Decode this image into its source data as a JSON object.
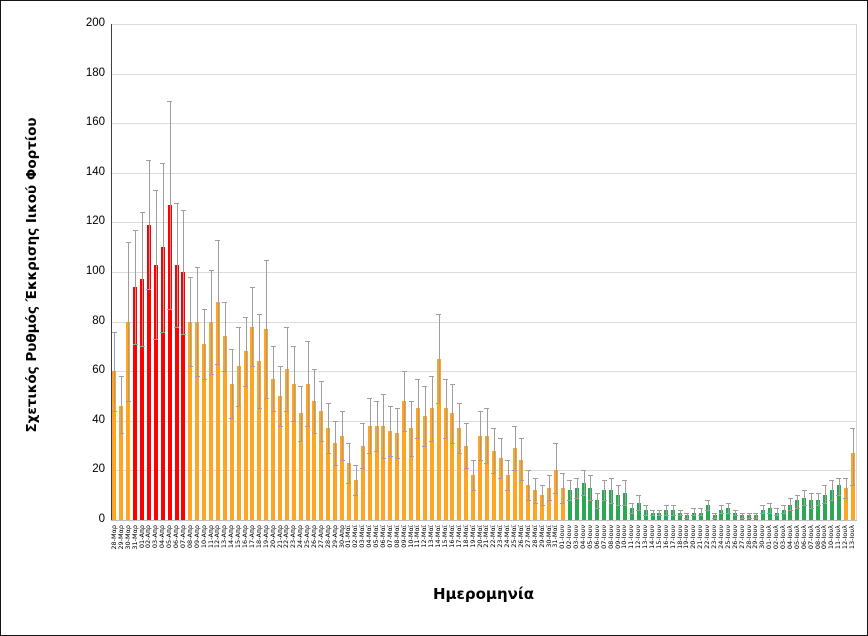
{
  "figure": {
    "title": "",
    "y_axis_title": "Σχετικός Ρυθμός Έκκρισης Ιικού Φορτίου",
    "x_axis_title": "Ημερομηνία"
  },
  "chart_data": {
    "type": "bar",
    "title": "",
    "xlabel": "Ημερομηνία",
    "ylabel": "Σχετικός Ρυθμός Έκκρισης Ιικού Φορτίου",
    "ylim": [
      0,
      200
    ],
    "yticks": [
      0,
      20,
      40,
      60,
      80,
      100,
      120,
      140,
      160,
      180,
      200
    ],
    "grid": true,
    "legend": "none",
    "error_bars": true,
    "colors": {
      "red": "#fe0000",
      "orange": "#ffa423",
      "green": "#2aa952",
      "error": "#9e9e9e",
      "gridline": "#dcdcdc"
    },
    "bars": [
      {
        "date": "28-Μαρ",
        "value": 60,
        "lo": 44,
        "hi": 76,
        "color": "orange"
      },
      {
        "date": "29-Μαρ",
        "value": 46,
        "lo": 35,
        "hi": 58,
        "color": "orange"
      },
      {
        "date": "30-Μαρ",
        "value": 80,
        "lo": 48,
        "hi": 112,
        "color": "orange"
      },
      {
        "date": "31-Μαρ",
        "value": 94,
        "lo": 71,
        "hi": 117,
        "color": "red"
      },
      {
        "date": "01-Απρ",
        "value": 97,
        "lo": 70,
        "hi": 124,
        "color": "red"
      },
      {
        "date": "02-Απρ",
        "value": 119,
        "lo": 93,
        "hi": 145,
        "color": "red"
      },
      {
        "date": "03-Απρ",
        "value": 103,
        "lo": 73,
        "hi": 133,
        "color": "red"
      },
      {
        "date": "04-Απρ",
        "value": 110,
        "lo": 76,
        "hi": 144,
        "color": "red"
      },
      {
        "date": "05-Απρ",
        "value": 127,
        "lo": 85,
        "hi": 169,
        "color": "red"
      },
      {
        "date": "06-Απρ",
        "value": 103,
        "lo": 78,
        "hi": 128,
        "color": "red"
      },
      {
        "date": "07-Απρ",
        "value": 100,
        "lo": 75,
        "hi": 125,
        "color": "red"
      },
      {
        "date": "08-Απρ",
        "value": 80,
        "lo": 62,
        "hi": 98,
        "color": "orange"
      },
      {
        "date": "09-Απρ",
        "value": 80,
        "lo": 58,
        "hi": 102,
        "color": "orange"
      },
      {
        "date": "10-Απρ",
        "value": 71,
        "lo": 57,
        "hi": 85,
        "color": "orange"
      },
      {
        "date": "11-Απρ",
        "value": 80,
        "lo": 59,
        "hi": 101,
        "color": "orange"
      },
      {
        "date": "12-Απρ",
        "value": 88,
        "lo": 63,
        "hi": 113,
        "color": "orange"
      },
      {
        "date": "13-Απρ",
        "value": 74,
        "lo": 60,
        "hi": 88,
        "color": "orange"
      },
      {
        "date": "14-Απρ",
        "value": 55,
        "lo": 41,
        "hi": 69,
        "color": "orange"
      },
      {
        "date": "15-Απρ",
        "value": 62,
        "lo": 46,
        "hi": 78,
        "color": "orange"
      },
      {
        "date": "16-Απρ",
        "value": 68,
        "lo": 54,
        "hi": 82,
        "color": "orange"
      },
      {
        "date": "17-Απρ",
        "value": 78,
        "lo": 62,
        "hi": 94,
        "color": "orange"
      },
      {
        "date": "18-Απρ",
        "value": 64,
        "lo": 45,
        "hi": 83,
        "color": "orange"
      },
      {
        "date": "19-Απρ",
        "value": 77,
        "lo": 49,
        "hi": 105,
        "color": "orange"
      },
      {
        "date": "20-Απρ",
        "value": 57,
        "lo": 44,
        "hi": 70,
        "color": "orange"
      },
      {
        "date": "21-Απρ",
        "value": 50,
        "lo": 38,
        "hi": 62,
        "color": "orange"
      },
      {
        "date": "22-Απρ",
        "value": 61,
        "lo": 44,
        "hi": 78,
        "color": "orange"
      },
      {
        "date": "23-Απρ",
        "value": 55,
        "lo": 40,
        "hi": 70,
        "color": "orange"
      },
      {
        "date": "24-Απρ",
        "value": 43,
        "lo": 32,
        "hi": 54,
        "color": "orange"
      },
      {
        "date": "25-Απρ",
        "value": 55,
        "lo": 38,
        "hi": 72,
        "color": "orange"
      },
      {
        "date": "26-Απρ",
        "value": 48,
        "lo": 35,
        "hi": 61,
        "color": "orange"
      },
      {
        "date": "27-Απρ",
        "value": 44,
        "lo": 32,
        "hi": 56,
        "color": "orange"
      },
      {
        "date": "28-Απρ",
        "value": 37,
        "lo": 27,
        "hi": 47,
        "color": "orange"
      },
      {
        "date": "29-Απρ",
        "value": 31,
        "lo": 22,
        "hi": 40,
        "color": "orange"
      },
      {
        "date": "30-Απρ",
        "value": 34,
        "lo": 24,
        "hi": 44,
        "color": "orange"
      },
      {
        "date": "01-Μαϊ",
        "value": 23,
        "lo": 15,
        "hi": 31,
        "color": "orange"
      },
      {
        "date": "02-Μαϊ",
        "value": 16,
        "lo": 10,
        "hi": 22,
        "color": "orange"
      },
      {
        "date": "03-Μαϊ",
        "value": 30,
        "lo": 21,
        "hi": 39,
        "color": "orange"
      },
      {
        "date": "04-Μαϊ",
        "value": 38,
        "lo": 27,
        "hi": 49,
        "color": "orange"
      },
      {
        "date": "05-Μαϊ",
        "value": 38,
        "lo": 28,
        "hi": 48,
        "color": "orange"
      },
      {
        "date": "06-Μαϊ",
        "value": 38,
        "lo": 25,
        "hi": 51,
        "color": "orange"
      },
      {
        "date": "07-Μαϊ",
        "value": 36,
        "lo": 26,
        "hi": 46,
        "color": "orange"
      },
      {
        "date": "08-Μαϊ",
        "value": 35,
        "lo": 25,
        "hi": 45,
        "color": "orange"
      },
      {
        "date": "09-Μαϊ",
        "value": 48,
        "lo": 36,
        "hi": 60,
        "color": "orange"
      },
      {
        "date": "10-Μαϊ",
        "value": 37,
        "lo": 26,
        "hi": 48,
        "color": "orange"
      },
      {
        "date": "11-Μαϊ",
        "value": 45,
        "lo": 33,
        "hi": 57,
        "color": "orange"
      },
      {
        "date": "12-Μαϊ",
        "value": 42,
        "lo": 30,
        "hi": 54,
        "color": "orange"
      },
      {
        "date": "13-Μαϊ",
        "value": 45,
        "lo": 32,
        "hi": 58,
        "color": "orange"
      },
      {
        "date": "14-Μαϊ",
        "value": 65,
        "lo": 47,
        "hi": 83,
        "color": "orange"
      },
      {
        "date": "15-Μαϊ",
        "value": 45,
        "lo": 33,
        "hi": 57,
        "color": "orange"
      },
      {
        "date": "16-Μαϊ",
        "value": 43,
        "lo": 31,
        "hi": 55,
        "color": "orange"
      },
      {
        "date": "17-Μαϊ",
        "value": 37,
        "lo": 27,
        "hi": 47,
        "color": "orange"
      },
      {
        "date": "18-Μαϊ",
        "value": 30,
        "lo": 21,
        "hi": 39,
        "color": "orange"
      },
      {
        "date": "19-Μαϊ",
        "value": 18,
        "lo": 12,
        "hi": 24,
        "color": "orange"
      },
      {
        "date": "20-Μαϊ",
        "value": 34,
        "lo": 24,
        "hi": 44,
        "color": "orange"
      },
      {
        "date": "21-Μαϊ",
        "value": 34,
        "lo": 23,
        "hi": 45,
        "color": "orange"
      },
      {
        "date": "22-Μαϊ",
        "value": 28,
        "lo": 19,
        "hi": 37,
        "color": "orange"
      },
      {
        "date": "23-Μαϊ",
        "value": 25,
        "lo": 17,
        "hi": 33,
        "color": "orange"
      },
      {
        "date": "24-Μαϊ",
        "value": 18,
        "lo": 12,
        "hi": 24,
        "color": "orange"
      },
      {
        "date": "25-Μαϊ",
        "value": 29,
        "lo": 20,
        "hi": 38,
        "color": "orange"
      },
      {
        "date": "26-Μαϊ",
        "value": 24,
        "lo": 16,
        "hi": 33,
        "color": "orange"
      },
      {
        "date": "27-Μαϊ",
        "value": 14,
        "lo": 8,
        "hi": 20,
        "color": "orange"
      },
      {
        "date": "28-Μαϊ",
        "value": 12,
        "lo": 7,
        "hi": 17,
        "color": "orange"
      },
      {
        "date": "29-Μαϊ",
        "value": 10,
        "lo": 6,
        "hi": 14,
        "color": "orange"
      },
      {
        "date": "30-Μαϊ",
        "value": 13,
        "lo": 8,
        "hi": 18,
        "color": "orange"
      },
      {
        "date": "31-Μαϊ",
        "value": 20,
        "lo": 11,
        "hi": 31,
        "color": "orange"
      },
      {
        "date": "01-Ιουν",
        "value": 13,
        "lo": 7,
        "hi": 19,
        "color": "orange"
      },
      {
        "date": "02-Ιουν",
        "value": 12,
        "lo": 8,
        "hi": 16,
        "color": "green"
      },
      {
        "date": "03-Ιουν",
        "value": 13,
        "lo": 9,
        "hi": 17,
        "color": "green"
      },
      {
        "date": "04-Ιουν",
        "value": 15,
        "lo": 10,
        "hi": 20,
        "color": "green"
      },
      {
        "date": "05-Ιουν",
        "value": 13,
        "lo": 8,
        "hi": 18,
        "color": "green"
      },
      {
        "date": "06-Ιουν",
        "value": 8,
        "lo": 5,
        "hi": 11,
        "color": "green"
      },
      {
        "date": "07-Ιουν",
        "value": 12,
        "lo": 8,
        "hi": 16,
        "color": "green"
      },
      {
        "date": "08-Ιουν",
        "value": 12,
        "lo": 7,
        "hi": 17,
        "color": "green"
      },
      {
        "date": "09-Ιουν",
        "value": 10,
        "lo": 6,
        "hi": 14,
        "color": "green"
      },
      {
        "date": "10-Ιουν",
        "value": 11,
        "lo": 6,
        "hi": 16,
        "color": "green"
      },
      {
        "date": "11-Ιουν",
        "value": 5,
        "lo": 3,
        "hi": 7,
        "color": "green"
      },
      {
        "date": "12-Ιουν",
        "value": 7,
        "lo": 4,
        "hi": 10,
        "color": "green"
      },
      {
        "date": "13-Ιουν",
        "value": 4,
        "lo": 2,
        "hi": 6,
        "color": "green"
      },
      {
        "date": "14-Ιουν",
        "value": 3,
        "lo": 2,
        "hi": 4,
        "color": "green"
      },
      {
        "date": "15-Ιουν",
        "value": 3,
        "lo": 2,
        "hi": 4,
        "color": "green"
      },
      {
        "date": "16-Ιουν",
        "value": 4,
        "lo": 2,
        "hi": 6,
        "color": "green"
      },
      {
        "date": "17-Ιουν",
        "value": 4,
        "lo": 2,
        "hi": 6,
        "color": "green"
      },
      {
        "date": "18-Ιουν",
        "value": 3,
        "lo": 2,
        "hi": 4,
        "color": "green"
      },
      {
        "date": "19-Ιουν",
        "value": 2,
        "lo": 1,
        "hi": 3,
        "color": "green"
      },
      {
        "date": "20-Ιουν",
        "value": 3,
        "lo": 2,
        "hi": 5,
        "color": "green"
      },
      {
        "date": "21-Ιουν",
        "value": 3,
        "lo": 2,
        "hi": 5,
        "color": "green"
      },
      {
        "date": "22-Ιουν",
        "value": 6,
        "lo": 4,
        "hi": 8,
        "color": "green"
      },
      {
        "date": "23-Ιουν",
        "value": 2,
        "lo": 1,
        "hi": 3,
        "color": "green"
      },
      {
        "date": "24-Ιουν",
        "value": 4,
        "lo": 3,
        "hi": 6,
        "color": "green"
      },
      {
        "date": "25-Ιουν",
        "value": 5,
        "lo": 3,
        "hi": 7,
        "color": "green"
      },
      {
        "date": "26-Ιουν",
        "value": 3,
        "lo": 2,
        "hi": 4,
        "color": "green"
      },
      {
        "date": "27-Ιουν",
        "value": 2,
        "lo": 1,
        "hi": 3,
        "color": "green"
      },
      {
        "date": "28-Ιουν",
        "value": 2,
        "lo": 1,
        "hi": 3,
        "color": "green"
      },
      {
        "date": "29-Ιουν",
        "value": 2,
        "lo": 1,
        "hi": 3,
        "color": "green"
      },
      {
        "date": "30-Ιουν",
        "value": 4,
        "lo": 3,
        "hi": 6,
        "color": "green"
      },
      {
        "date": "01-Ιουλ",
        "value": 5,
        "lo": 3,
        "hi": 7,
        "color": "green"
      },
      {
        "date": "02-Ιουλ",
        "value": 3,
        "lo": 2,
        "hi": 5,
        "color": "green"
      },
      {
        "date": "03-Ιουλ",
        "value": 4,
        "lo": 3,
        "hi": 6,
        "color": "green"
      },
      {
        "date": "04-Ιουλ",
        "value": 6,
        "lo": 4,
        "hi": 9,
        "color": "green"
      },
      {
        "date": "05-Ιουλ",
        "value": 8,
        "lo": 5,
        "hi": 10,
        "color": "green"
      },
      {
        "date": "06-Ιουλ",
        "value": 9,
        "lo": 6,
        "hi": 12,
        "color": "green"
      },
      {
        "date": "07-Ιουλ",
        "value": 8,
        "lo": 5,
        "hi": 11,
        "color": "green"
      },
      {
        "date": "08-Ιουλ",
        "value": 8,
        "lo": 6,
        "hi": 11,
        "color": "green"
      },
      {
        "date": "09-Ιουλ",
        "value": 10,
        "lo": 7,
        "hi": 14,
        "color": "green"
      },
      {
        "date": "10-Ιουλ",
        "value": 12,
        "lo": 8,
        "hi": 16,
        "color": "green"
      },
      {
        "date": "11-Ιουλ",
        "value": 14,
        "lo": 10,
        "hi": 17,
        "color": "green"
      },
      {
        "date": "12-Ιουλ",
        "value": 13,
        "lo": 9,
        "hi": 17,
        "color": "orange"
      },
      {
        "date": "13-Ιουλ",
        "value": 27,
        "lo": 14,
        "hi": 37,
        "color": "orange"
      }
    ]
  }
}
